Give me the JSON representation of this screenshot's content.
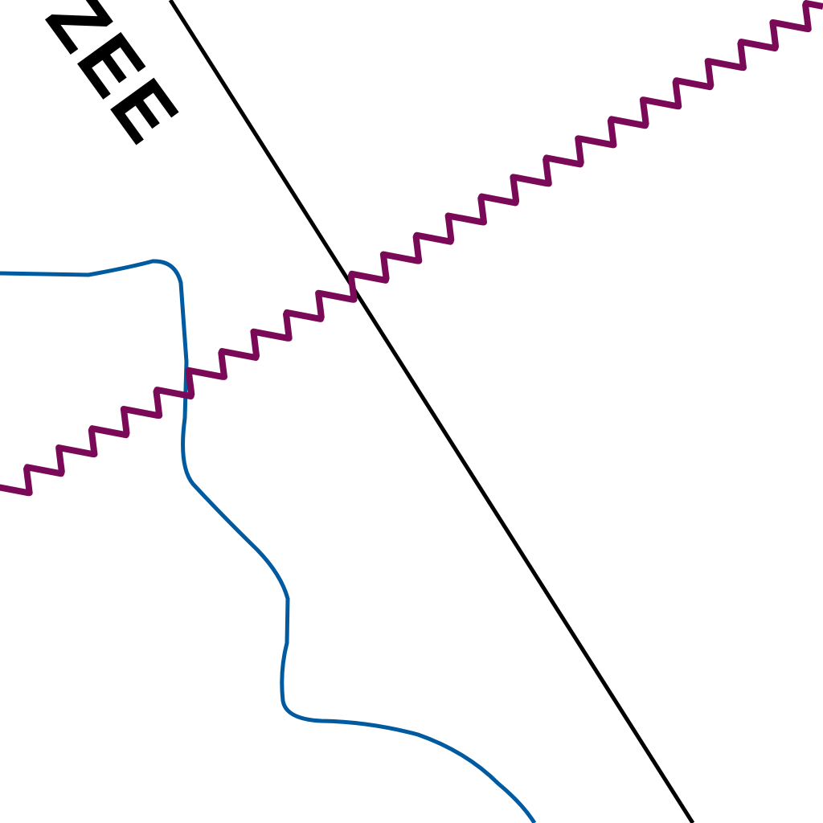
{
  "map": {
    "water_label": "ZEE",
    "colors": {
      "background": "#ffffff",
      "label": "#000000",
      "boundary_line": "#000000",
      "waterway": "#005aa0",
      "wavy_line": "#7a0a57"
    }
  }
}
